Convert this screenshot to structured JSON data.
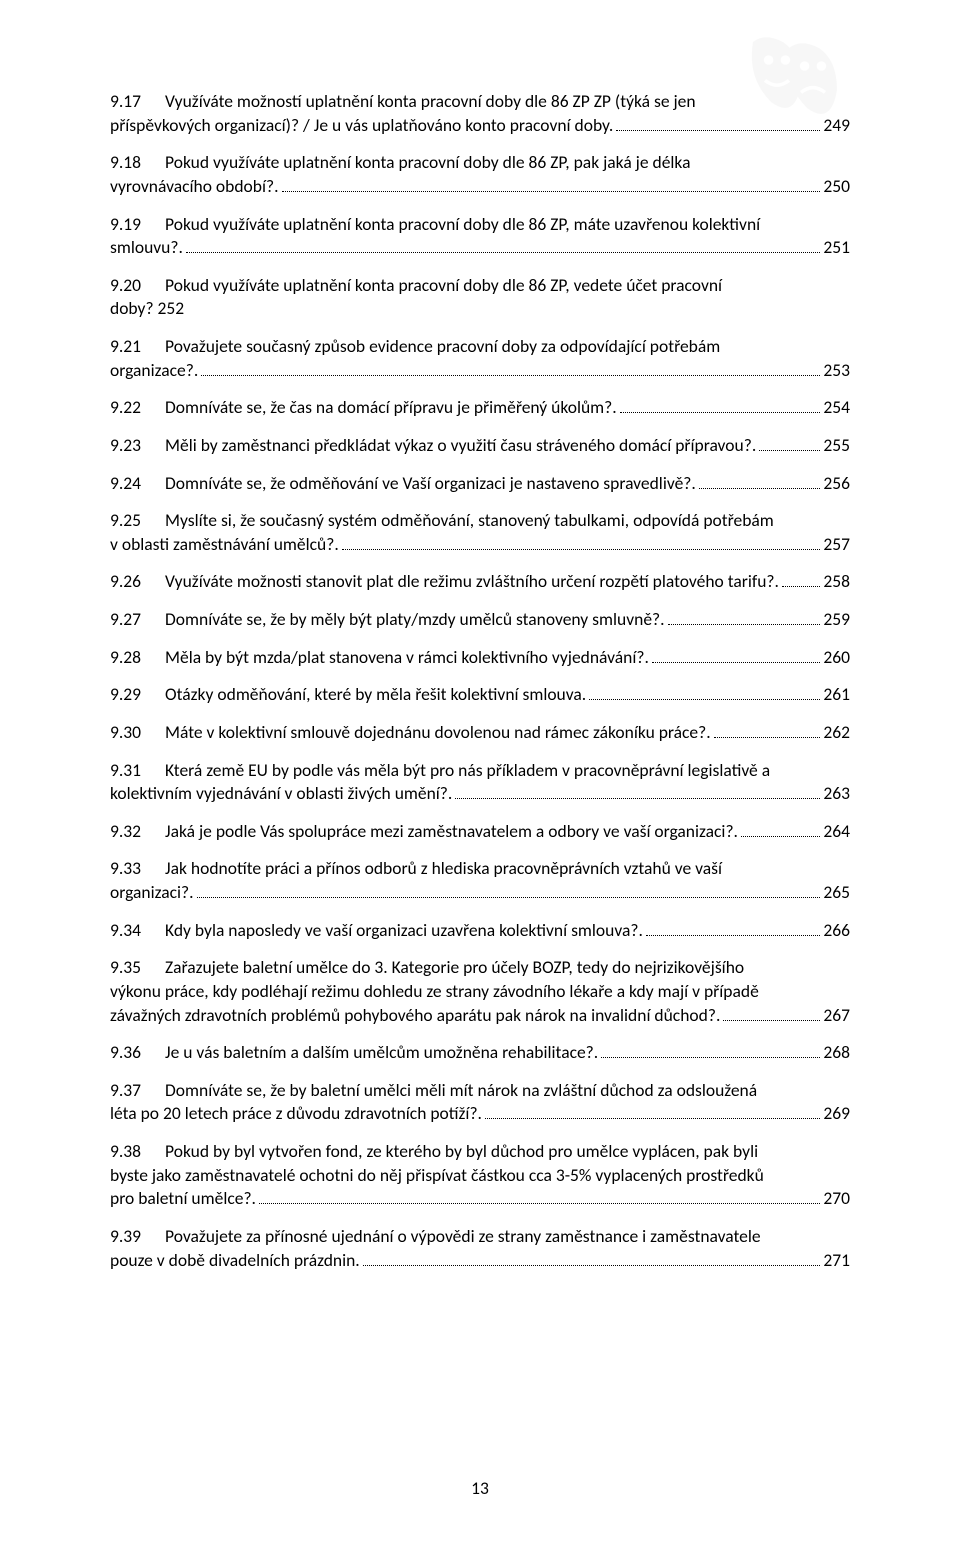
{
  "page_number": "13",
  "text_color": "#000000",
  "bg_color": "#ffffff",
  "font_family": "Calibri",
  "font_size_pt": 11,
  "entries": [
    {
      "num": "9.17",
      "lines": [
        "Využíváte možností uplatnění konta pracovní doby dle 86 ZP ZP (týká se jen"
      ],
      "tail": "příspěvkových organizací)? / Je u vás uplatňováno konto pracovní doby.",
      "page": "249"
    },
    {
      "num": "9.18",
      "lines": [
        "Pokud využíváte uplatnění konta pracovní doby dle 86 ZP, pak jaká je délka"
      ],
      "tail": "vyrovnávacího období?.",
      "page": "250"
    },
    {
      "num": "9.19",
      "lines": [
        "Pokud využíváte uplatnění konta pracovní doby dle 86 ZP, máte uzavřenou kolektivní"
      ],
      "tail": "smlouvu?.",
      "page": "251"
    },
    {
      "num": "9.20",
      "lines": [
        "Pokud využíváte uplatnění konta pracovní doby dle 86 ZP, vedete účet pracovní"
      ],
      "tail": "doby?",
      "page": "252",
      "no_leader": true
    },
    {
      "num": "9.21",
      "lines": [
        "Považujete současný způsob evidence pracovní doby za odpovídající potřebám"
      ],
      "tail": "organizace?.",
      "page": "253"
    },
    {
      "num": "9.22",
      "tail": "Domníváte se, že čas na domácí přípravu je přiměřený úkolům?.",
      "page": "254"
    },
    {
      "num": "9.23",
      "tail": "Měli by zaměstnanci předkládat výkaz o využití času stráveného domácí přípravou?.",
      "page": "255"
    },
    {
      "num": "9.24",
      "tail": "Domníváte se, že odměňování ve Vaší organizaci je nastaveno spravedlivě?.",
      "page": "256"
    },
    {
      "num": "9.25",
      "lines": [
        "Myslíte si, že současný systém odměňování, stanovený tabulkami, odpovídá potřebám"
      ],
      "tail": "v oblasti zaměstnávání umělců?.",
      "page": "257"
    },
    {
      "num": "9.26",
      "tail": "Využíváte možnosti stanovit plat dle režimu zvláštního určení rozpětí platového tarifu?.",
      "page": "258"
    },
    {
      "num": "9.27",
      "tail": "Domníváte se, že by měly být platy/mzdy umělců stanoveny smluvně?.",
      "page": "259"
    },
    {
      "num": "9.28",
      "tail": "Měla by být mzda/plat stanovena v rámci kolektivního vyjednávání?.",
      "page": "260"
    },
    {
      "num": "9.29",
      "tail": "Otázky odměňování, které by měla řešit kolektivní smlouva.",
      "page": "261"
    },
    {
      "num": "9.30",
      "tail": "Máte v kolektivní smlouvě dojednánu dovolenou nad rámec zákoníku práce?.",
      "page": "262"
    },
    {
      "num": "9.31",
      "lines": [
        "Která země EU by podle vás měla být pro nás příkladem v pracovněprávní legislativě a"
      ],
      "tail": "kolektivním vyjednávání v oblasti živých umění?.",
      "page": "263"
    },
    {
      "num": "9.32",
      "tail": "Jaká je podle Vás spolupráce mezi zaměstnavatelem a odbory ve vaší organizaci?.",
      "page": "264"
    },
    {
      "num": "9.33",
      "lines": [
        "Jak hodnotíte práci a přínos odborů z hlediska pracovněprávních vztahů ve vaší"
      ],
      "tail": "organizaci?.",
      "page": "265"
    },
    {
      "num": "9.34",
      "tail": "Kdy byla naposledy ve vaší organizaci uzavřena kolektivní smlouva?.",
      "page": "266"
    },
    {
      "num": "9.35",
      "lines": [
        "Zařazujete baletní umělce do 3. Kategorie pro účely BOZP, tedy do nejrizikovějšího",
        "výkonu práce, kdy podléhají režimu dohledu ze strany závodního lékaře a kdy mají v případě"
      ],
      "tail": "závažných zdravotních problémů pohybového aparátu pak nárok na invalidní důchod?.",
      "page": "267"
    },
    {
      "num": "9.36",
      "tail": "Je u vás baletním a dalším umělcům umožněna rehabilitace?.",
      "page": "268"
    },
    {
      "num": "9.37",
      "lines": [
        "Domníváte se, že by baletní umělci měli mít nárok na zvláštní důchod za odsloužená"
      ],
      "tail": "léta po 20 letech práce z důvodu zdravotních potíží?.",
      "page": "269"
    },
    {
      "num": "9.38",
      "lines": [
        "Pokud by byl vytvořen fond, ze kterého by byl důchod pro umělce vyplácen, pak byli",
        "byste jako zaměstnavatelé ochotni do něj přispívat částkou cca 3-5% vyplacených prostředků"
      ],
      "tail": "pro baletní umělce?.",
      "page": "270"
    },
    {
      "num": "9.39",
      "lines": [
        "Považujete za přínosné ujednání o výpovědi ze strany zaměstnance i zaměstnavatele"
      ],
      "tail": "pouze v době divadelních prázdnin.",
      "page": "271"
    }
  ]
}
